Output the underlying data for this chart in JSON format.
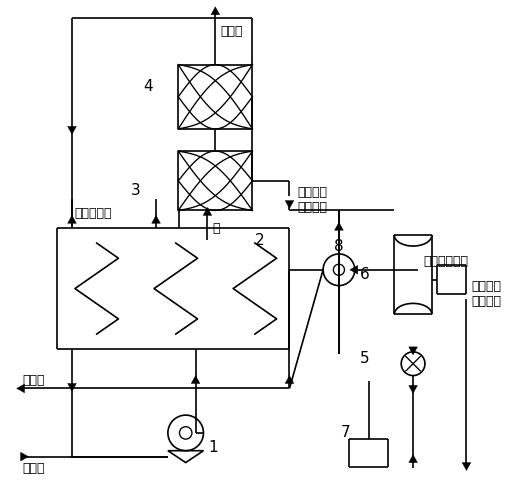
{
  "bg_color": "#ffffff",
  "line_color": "#000000",
  "figsize": [
    5.11,
    5.0
  ],
  "dpi": 100,
  "labels": {
    "pure_h2_top": "纯氢气",
    "num4": "4",
    "co2_mix_line1": "二氧化碳",
    "co2_mix_line2": "混合余气",
    "num3": "3",
    "methanol_steam": "甲醇水蒸汽",
    "water": "水",
    "num2": "2",
    "num8": "8",
    "h2_mix": "氢气混合余气",
    "num6": "6",
    "num5": "5",
    "liquid_co2_line1": "液态二氧",
    "liquid_co2_line2": "化碳产出",
    "num7": "7",
    "pure_h2_bottom": "纯氢气",
    "methanol_water": "甲醇水",
    "num1": "1"
  }
}
